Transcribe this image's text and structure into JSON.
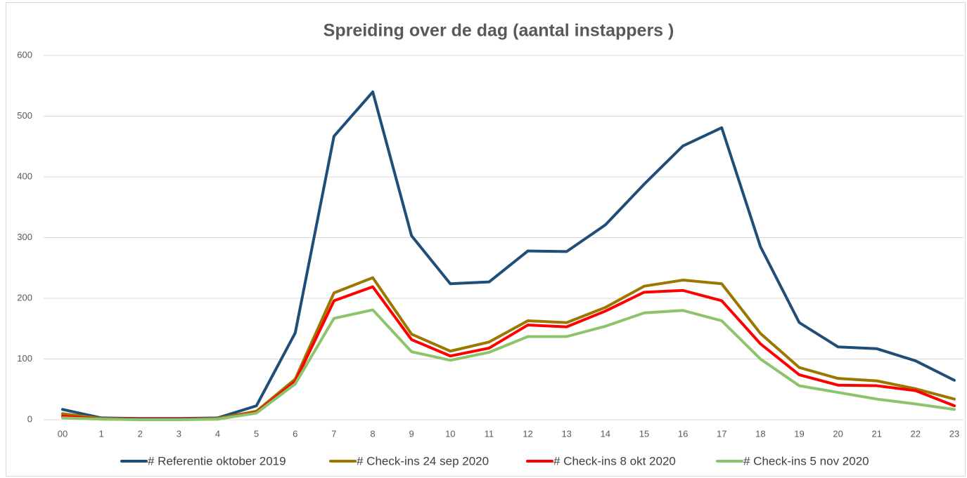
{
  "chart_data": {
    "type": "line",
    "title": "Spreiding over de dag (aantal instappers )",
    "categories": [
      "00",
      "1",
      "2",
      "3",
      "4",
      "5",
      "6",
      "7",
      "8",
      "9",
      "10",
      "11",
      "12",
      "13",
      "14",
      "15",
      "16",
      "17",
      "18",
      "19",
      "20",
      "21",
      "22",
      "23"
    ],
    "series": [
      {
        "name": "# Referentie oktober 2019",
        "color": "#1f4e79",
        "values": [
          17,
          3,
          2,
          2,
          3,
          23,
          143,
          467,
          540,
          303,
          224,
          227,
          278,
          277,
          321,
          388,
          451,
          481,
          285,
          160,
          120,
          117,
          97,
          65
        ]
      },
      {
        "name": "# Check-ins 24 sep 2020",
        "color": "#9c7700",
        "values": [
          10,
          2,
          1,
          1,
          2,
          14,
          67,
          209,
          234,
          141,
          113,
          128,
          163,
          160,
          185,
          220,
          230,
          224,
          142,
          86,
          68,
          64,
          51,
          34
        ]
      },
      {
        "name": "# Check-ins 8 okt 2020",
        "color": "#ff0000",
        "values": [
          6,
          1,
          1,
          1,
          1,
          12,
          63,
          196,
          219,
          132,
          105,
          118,
          156,
          153,
          179,
          210,
          213,
          196,
          125,
          74,
          57,
          56,
          48,
          23
        ]
      },
      {
        "name": "# Check-ins 5 nov 2020",
        "color": "#8cc46c",
        "values": [
          3,
          1,
          0,
          0,
          1,
          11,
          59,
          167,
          181,
          112,
          98,
          111,
          137,
          137,
          154,
          176,
          180,
          163,
          100,
          56,
          45,
          34,
          26,
          17
        ]
      }
    ],
    "ylim": [
      0,
      600
    ],
    "yticks": [
      0,
      100,
      200,
      300,
      400,
      500,
      600
    ],
    "grid": true
  }
}
